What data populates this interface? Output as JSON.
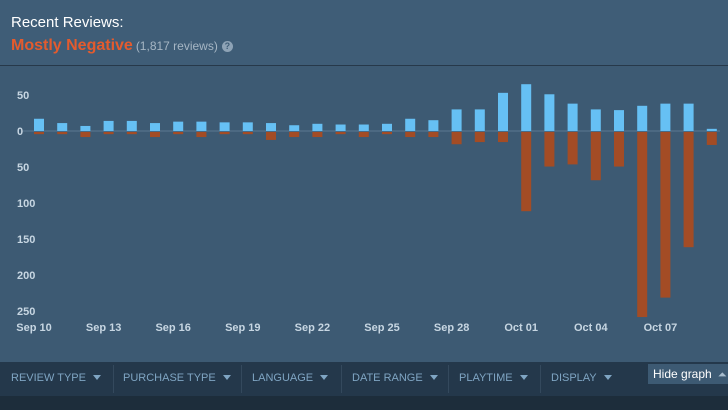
{
  "header": {
    "title": "Recent Reviews:",
    "summary": "Mostly Negative",
    "count": "(1,817 reviews)",
    "help_icon": "?"
  },
  "colors": {
    "positive": "#66c0f4",
    "negative": "#a34c25",
    "summary": "#e35b2e"
  },
  "chart_data": {
    "type": "bar",
    "title": "",
    "xlabel": "",
    "ylabel": "",
    "categories": [
      "Sep 10",
      "Sep 11",
      "Sep 12",
      "Sep 13",
      "Sep 14",
      "Sep 15",
      "Sep 16",
      "Sep 17",
      "Sep 18",
      "Sep 19",
      "Sep 20",
      "Sep 21",
      "Sep 22",
      "Sep 23",
      "Sep 24",
      "Sep 25",
      "Sep 26",
      "Sep 27",
      "Sep 28",
      "Sep 29",
      "Sep 30",
      "Oct 01",
      "Oct 02",
      "Oct 03",
      "Oct 04",
      "Oct 05",
      "Oct 06",
      "Oct 07",
      "Oct 08",
      "Oct 09"
    ],
    "x_tick_labels": [
      "Sep 10",
      "Sep 13",
      "Sep 16",
      "Sep 19",
      "Sep 22",
      "Sep 25",
      "Sep 28",
      "Oct 01",
      "Oct 04",
      "Oct 07"
    ],
    "y_ticks_up": [
      "50"
    ],
    "y_tick_zero": "0",
    "y_ticks_down": [
      "50",
      "100",
      "150",
      "200",
      "250"
    ],
    "ylim": [
      -260,
      65
    ],
    "series": [
      {
        "name": "Positive",
        "values": [
          17,
          11,
          7,
          14,
          14,
          11,
          13,
          13,
          12,
          12,
          11,
          8,
          10,
          9,
          9,
          10,
          17,
          15,
          30,
          30,
          53,
          65,
          51,
          38,
          30,
          29,
          35,
          38,
          38,
          3
        ]
      },
      {
        "name": "Negative",
        "values": [
          -3,
          -3,
          -7,
          -3,
          -3,
          -7,
          -3,
          -7,
          -3,
          -3,
          -11,
          -7,
          -7,
          -3,
          -7,
          -3,
          -7,
          -7,
          -17,
          -14,
          -14,
          -110,
          -48,
          -45,
          -67,
          -48,
          -257,
          -230,
          -160,
          -18
        ]
      }
    ]
  },
  "filters": {
    "review_type": "REVIEW TYPE",
    "purchase_type": "PURCHASE TYPE",
    "language": "LANGUAGE",
    "date_range": "DATE RANGE",
    "playtime": "PLAYTIME",
    "display": "DISPLAY"
  },
  "hide_graph": {
    "label": "Hide graph",
    "icon": "chevron-double-up-icon",
    "glyph": "⏶"
  }
}
